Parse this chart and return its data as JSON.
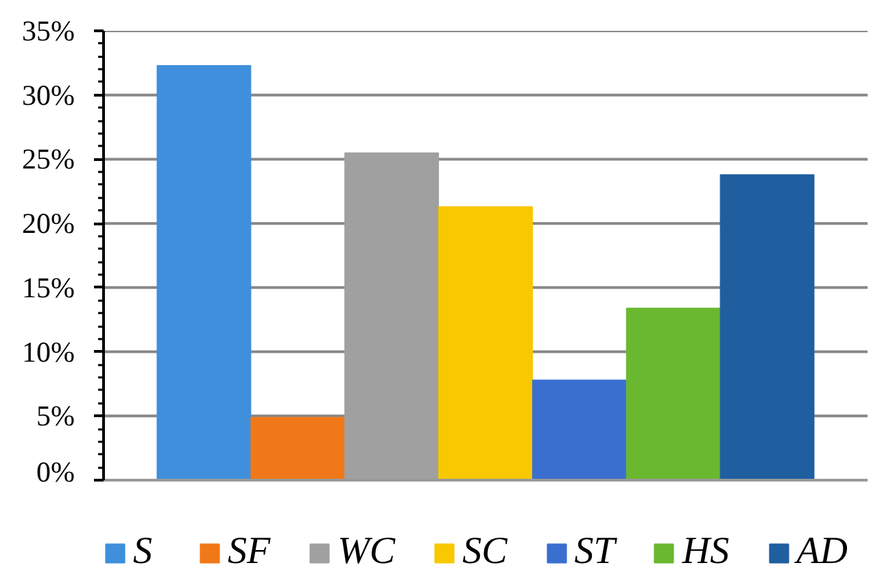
{
  "chart_data": {
    "type": "bar",
    "categories": [
      null
    ],
    "series": [
      {
        "name": "S",
        "color": "#3f8fdc",
        "values": [
          32.3
        ]
      },
      {
        "name": "SF",
        "color": "#f07818",
        "values": [
          4.9
        ]
      },
      {
        "name": "WC",
        "color": "#a0a0a0",
        "values": [
          25.5
        ]
      },
      {
        "name": "SC",
        "color": "#f8c800",
        "values": [
          21.3
        ]
      },
      {
        "name": "ST",
        "color": "#3a6fd0",
        "values": [
          7.8
        ]
      },
      {
        "name": "HS",
        "color": "#6ab830",
        "values": [
          13.4
        ]
      },
      {
        "name": "AD",
        "color": "#1f5fa0",
        "values": [
          23.8
        ]
      }
    ],
    "ylim": [
      0,
      35
    ],
    "yticks": [
      {
        "value": 0,
        "label": "0%"
      },
      {
        "value": 5,
        "label": "5%"
      },
      {
        "value": 10,
        "label": "10%"
      },
      {
        "value": 15,
        "label": "15%"
      },
      {
        "value": 20,
        "label": "20%"
      },
      {
        "value": 25,
        "label": "25%"
      },
      {
        "value": 30,
        "label": "30%"
      },
      {
        "value": 35,
        "label": "35%"
      },
      {
        "value": 1,
        "label": null
      },
      {
        "value": 2,
        "label": null
      },
      {
        "value": 3,
        "label": null
      },
      {
        "value": 4,
        "label": null
      },
      {
        "value": 6,
        "label": null
      },
      {
        "value": 7,
        "label": null
      },
      {
        "value": 8,
        "label": null
      },
      {
        "value": 9,
        "label": null
      },
      {
        "value": 11,
        "label": null
      },
      {
        "value": 12,
        "label": null
      },
      {
        "value": 13,
        "label": null
      },
      {
        "value": 14,
        "label": null
      },
      {
        "value": 16,
        "label": null
      },
      {
        "value": 17,
        "label": null
      },
      {
        "value": 18,
        "label": null
      },
      {
        "value": 19,
        "label": null
      },
      {
        "value": 21,
        "label": null
      },
      {
        "value": 22,
        "label": null
      },
      {
        "value": 23,
        "label": null
      },
      {
        "value": 24,
        "label": null
      },
      {
        "value": 26,
        "label": null
      },
      {
        "value": 27,
        "label": null
      },
      {
        "value": 28,
        "label": null
      },
      {
        "value": 29,
        "label": null
      },
      {
        "value": 31,
        "label": null
      },
      {
        "value": 32,
        "label": null
      },
      {
        "value": 33,
        "label": null
      },
      {
        "value": 34,
        "label": null
      }
    ],
    "grid": "y",
    "legend": "bottom"
  }
}
